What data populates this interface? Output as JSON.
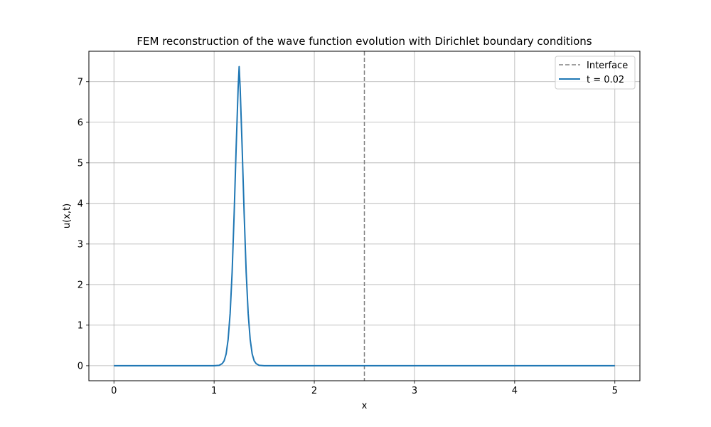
{
  "chart_data": {
    "type": "line",
    "title": "FEM reconstruction of the wave function evolution with Dirichlet boundary conditions",
    "xlabel": "x",
    "ylabel": "u(x,t)",
    "xlim": [
      -0.25,
      5.25
    ],
    "ylim": [
      -0.37,
      7.75
    ],
    "xticks": [
      0,
      1,
      2,
      3,
      4,
      5
    ],
    "yticks": [
      0,
      1,
      2,
      3,
      4,
      5,
      6,
      7
    ],
    "grid": true,
    "legend_position": "top-right",
    "interface": {
      "label": "Interface",
      "x": 2.5,
      "color": "#808080",
      "style": "dashed"
    },
    "series": [
      {
        "name": "t = 0.02",
        "color": "#1f77b4",
        "x": [
          0.0,
          0.5,
          1.0,
          1.05,
          1.08,
          1.1,
          1.12,
          1.14,
          1.16,
          1.18,
          1.2,
          1.22,
          1.24,
          1.25,
          1.26,
          1.28,
          1.3,
          1.32,
          1.34,
          1.36,
          1.38,
          1.4,
          1.42,
          1.45,
          1.5,
          2.0,
          2.5,
          3.0,
          3.5,
          4.0,
          4.5,
          5.0
        ],
        "y": [
          0,
          0,
          0,
          0.01,
          0.05,
          0.12,
          0.29,
          0.65,
          1.29,
          2.31,
          3.74,
          5.37,
          6.85,
          7.37,
          6.85,
          5.37,
          3.74,
          2.31,
          1.29,
          0.65,
          0.29,
          0.12,
          0.05,
          0.01,
          0,
          0,
          0,
          0,
          0,
          0,
          0,
          0
        ]
      }
    ]
  }
}
